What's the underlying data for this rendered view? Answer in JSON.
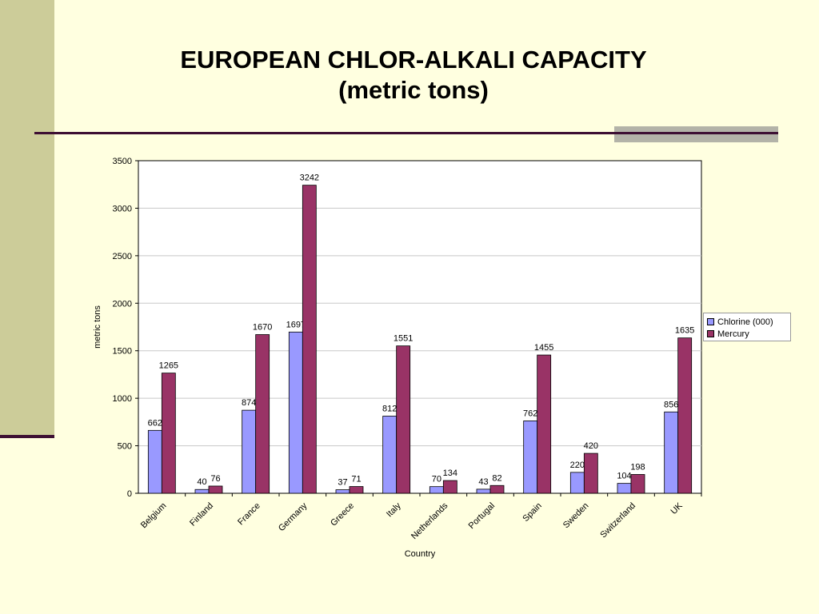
{
  "title": {
    "line1": "EUROPEAN CHLOR-ALKALI CAPACITY",
    "line2": "(metric tons)"
  },
  "colors": {
    "background": "#ffffe0",
    "chlorine": "#9999ff",
    "mercury": "#993366"
  },
  "chart_data": {
    "type": "bar",
    "xlabel": "Country",
    "ylabel": "metric tons",
    "ylim": [
      0,
      3500
    ],
    "yticks": [
      0,
      500,
      1000,
      1500,
      2000,
      2500,
      3000,
      3500
    ],
    "grid": true,
    "legend_position": "right",
    "categories": [
      "Belgium",
      "Finland",
      "France",
      "Germany",
      "Greece",
      "Italy",
      "Netherlands",
      "Portugal",
      "Spain",
      "Sweden",
      "Switzerland",
      "UK"
    ],
    "series": [
      {
        "name": "Chlorine (000)",
        "color": "#9999ff",
        "values": [
          662,
          40,
          874,
          1697,
          37,
          812,
          70,
          43,
          762,
          220,
          104,
          856
        ]
      },
      {
        "name": "Mercury",
        "color": "#993366",
        "values": [
          1265,
          76,
          1670,
          3242,
          71,
          1551,
          134,
          82,
          1455,
          420,
          198,
          1635
        ]
      }
    ]
  }
}
